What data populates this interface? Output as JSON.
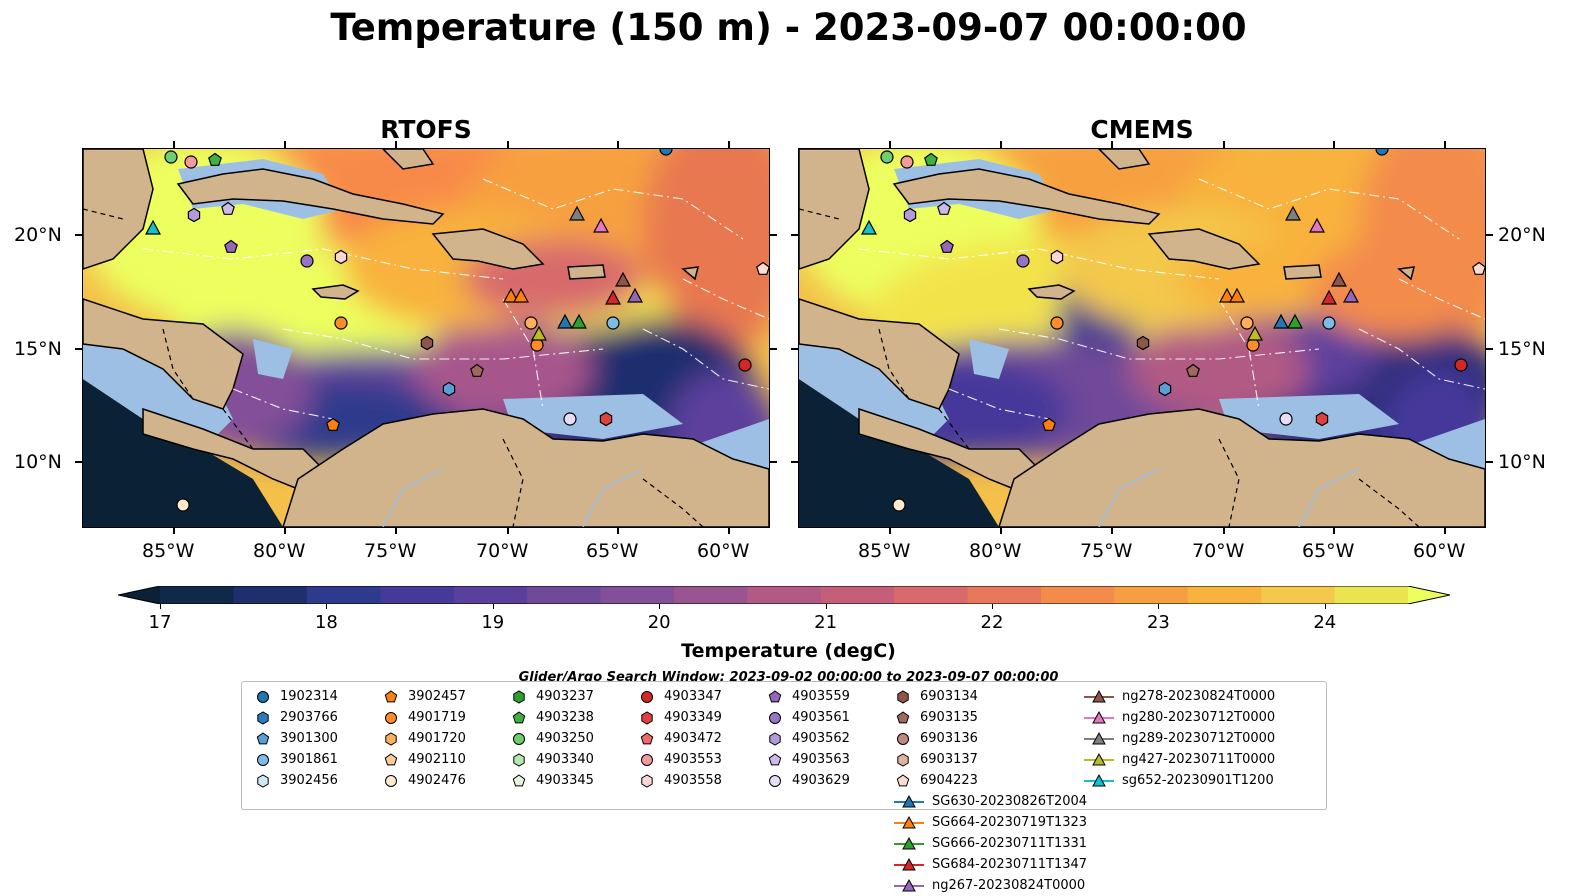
{
  "title": "Temperature (150 m) - 2023-09-07 00:00:00",
  "panels": [
    {
      "title": "RTOFS"
    },
    {
      "title": "CMEMS"
    }
  ],
  "lat_ticks": [
    "20°N",
    "15°N",
    "10°N"
  ],
  "lon_ticks": [
    "85°W",
    "80°W",
    "75°W",
    "70°W",
    "65°W",
    "60°W"
  ],
  "colorbar": {
    "title": "Temperature (degC)",
    "min": 17,
    "max": 24.5,
    "labels": [
      "17",
      "18",
      "19",
      "20",
      "21",
      "22",
      "23",
      "24"
    ],
    "colors": [
      "#0b2236",
      "#10284a",
      "#1f2f6e",
      "#2e3a8c",
      "#45399a",
      "#5b3f9c",
      "#6f4a9a",
      "#834f98",
      "#9a5490",
      "#b15a84",
      "#c55e78",
      "#d86a6c",
      "#e8785c",
      "#f38b4c",
      "#f79e42",
      "#f8b23e",
      "#f3c84b",
      "#e9e44f",
      "#ecff5e"
    ]
  },
  "search_window": "Glider/Argo Search Window: 2023-09-02 00:00:00 to 2023-09-07 00:00:00",
  "legend": [
    {
      "label": "1902314",
      "marker": "circle",
      "color": "#1f77b4"
    },
    {
      "label": "2903766",
      "marker": "hexagon",
      "color": "#2b7bba"
    },
    {
      "label": "3901300",
      "marker": "pentagon",
      "color": "#5a9fd4"
    },
    {
      "label": "3901861",
      "marker": "circle",
      "color": "#7fbbe8"
    },
    {
      "label": "3902456",
      "marker": "hexagon",
      "color": "#cfe8f7"
    },
    {
      "label": "3902457",
      "marker": "pentagon",
      "color": "#ff7f0e"
    },
    {
      "label": "4901719",
      "marker": "circle",
      "color": "#ff8c2a"
    },
    {
      "label": "4901720",
      "marker": "hexagon",
      "color": "#ffae5e"
    },
    {
      "label": "4902110",
      "marker": "pentagon",
      "color": "#ffc99a"
    },
    {
      "label": "4902476",
      "marker": "circle",
      "color": "#ffe9cf"
    },
    {
      "label": "4903237",
      "marker": "hexagon",
      "color": "#2ca02c"
    },
    {
      "label": "4903238",
      "marker": "pentagon",
      "color": "#3fb13f"
    },
    {
      "label": "4903250",
      "marker": "circle",
      "color": "#6fcf6f"
    },
    {
      "label": "4903340",
      "marker": "hexagon",
      "color": "#b5e8b0"
    },
    {
      "label": "4903345",
      "marker": "pentagon",
      "color": "#e3f7dc"
    },
    {
      "label": "4903347",
      "marker": "circle",
      "color": "#d62728"
    },
    {
      "label": "4903349",
      "marker": "hexagon",
      "color": "#e0413e"
    },
    {
      "label": "4903472",
      "marker": "pentagon",
      "color": "#ee6b6b"
    },
    {
      "label": "4903553",
      "marker": "circle",
      "color": "#f59a9a"
    },
    {
      "label": "4903558",
      "marker": "hexagon",
      "color": "#fcd5d5"
    },
    {
      "label": "4903559",
      "marker": "pentagon",
      "color": "#9467bd"
    },
    {
      "label": "4903561",
      "marker": "circle",
      "color": "#9a74c4"
    },
    {
      "label": "4903562",
      "marker": "hexagon",
      "color": "#b39bd9"
    },
    {
      "label": "4903563",
      "marker": "pentagon",
      "color": "#cdbaea"
    },
    {
      "label": "4903629",
      "marker": "circle",
      "color": "#e7dcf6"
    },
    {
      "label": "6903134",
      "marker": "hexagon",
      "color": "#8c564b"
    },
    {
      "label": "6903135",
      "marker": "pentagon",
      "color": "#a0695e"
    },
    {
      "label": "6903136",
      "marker": "circle",
      "color": "#c08a7d"
    },
    {
      "label": "6903137",
      "marker": "hexagon",
      "color": "#e0b2a4"
    },
    {
      "label": "6904223",
      "marker": "pentagon",
      "color": "#fbdcd0"
    },
    {
      "label": "SG630-20230826T2004",
      "marker": "triangle-line",
      "color": "#1f77b4"
    },
    {
      "label": "SG664-20230719T1323",
      "marker": "triangle-line",
      "color": "#ff7f0e"
    },
    {
      "label": "SG666-20230711T1331",
      "marker": "triangle-line",
      "color": "#2ca02c"
    },
    {
      "label": "SG684-20230711T1347",
      "marker": "triangle-line",
      "color": "#d62728"
    },
    {
      "label": "ng267-20230824T0000",
      "marker": "triangle-line",
      "color": "#9467bd"
    },
    {
      "label": "ng278-20230824T0000",
      "marker": "triangle-line",
      "color": "#8c564b"
    },
    {
      "label": "ng280-20230712T0000",
      "marker": "triangle-line",
      "color": "#e377c2"
    },
    {
      "label": "ng289-20230712T0000",
      "marker": "triangle-line",
      "color": "#7f7f7f"
    },
    {
      "label": "ng427-20230711T0000",
      "marker": "triangle-line",
      "color": "#bcbd22"
    },
    {
      "label": "sg652-20230901T1200",
      "marker": "triangle-line",
      "color": "#17becf"
    }
  ]
}
